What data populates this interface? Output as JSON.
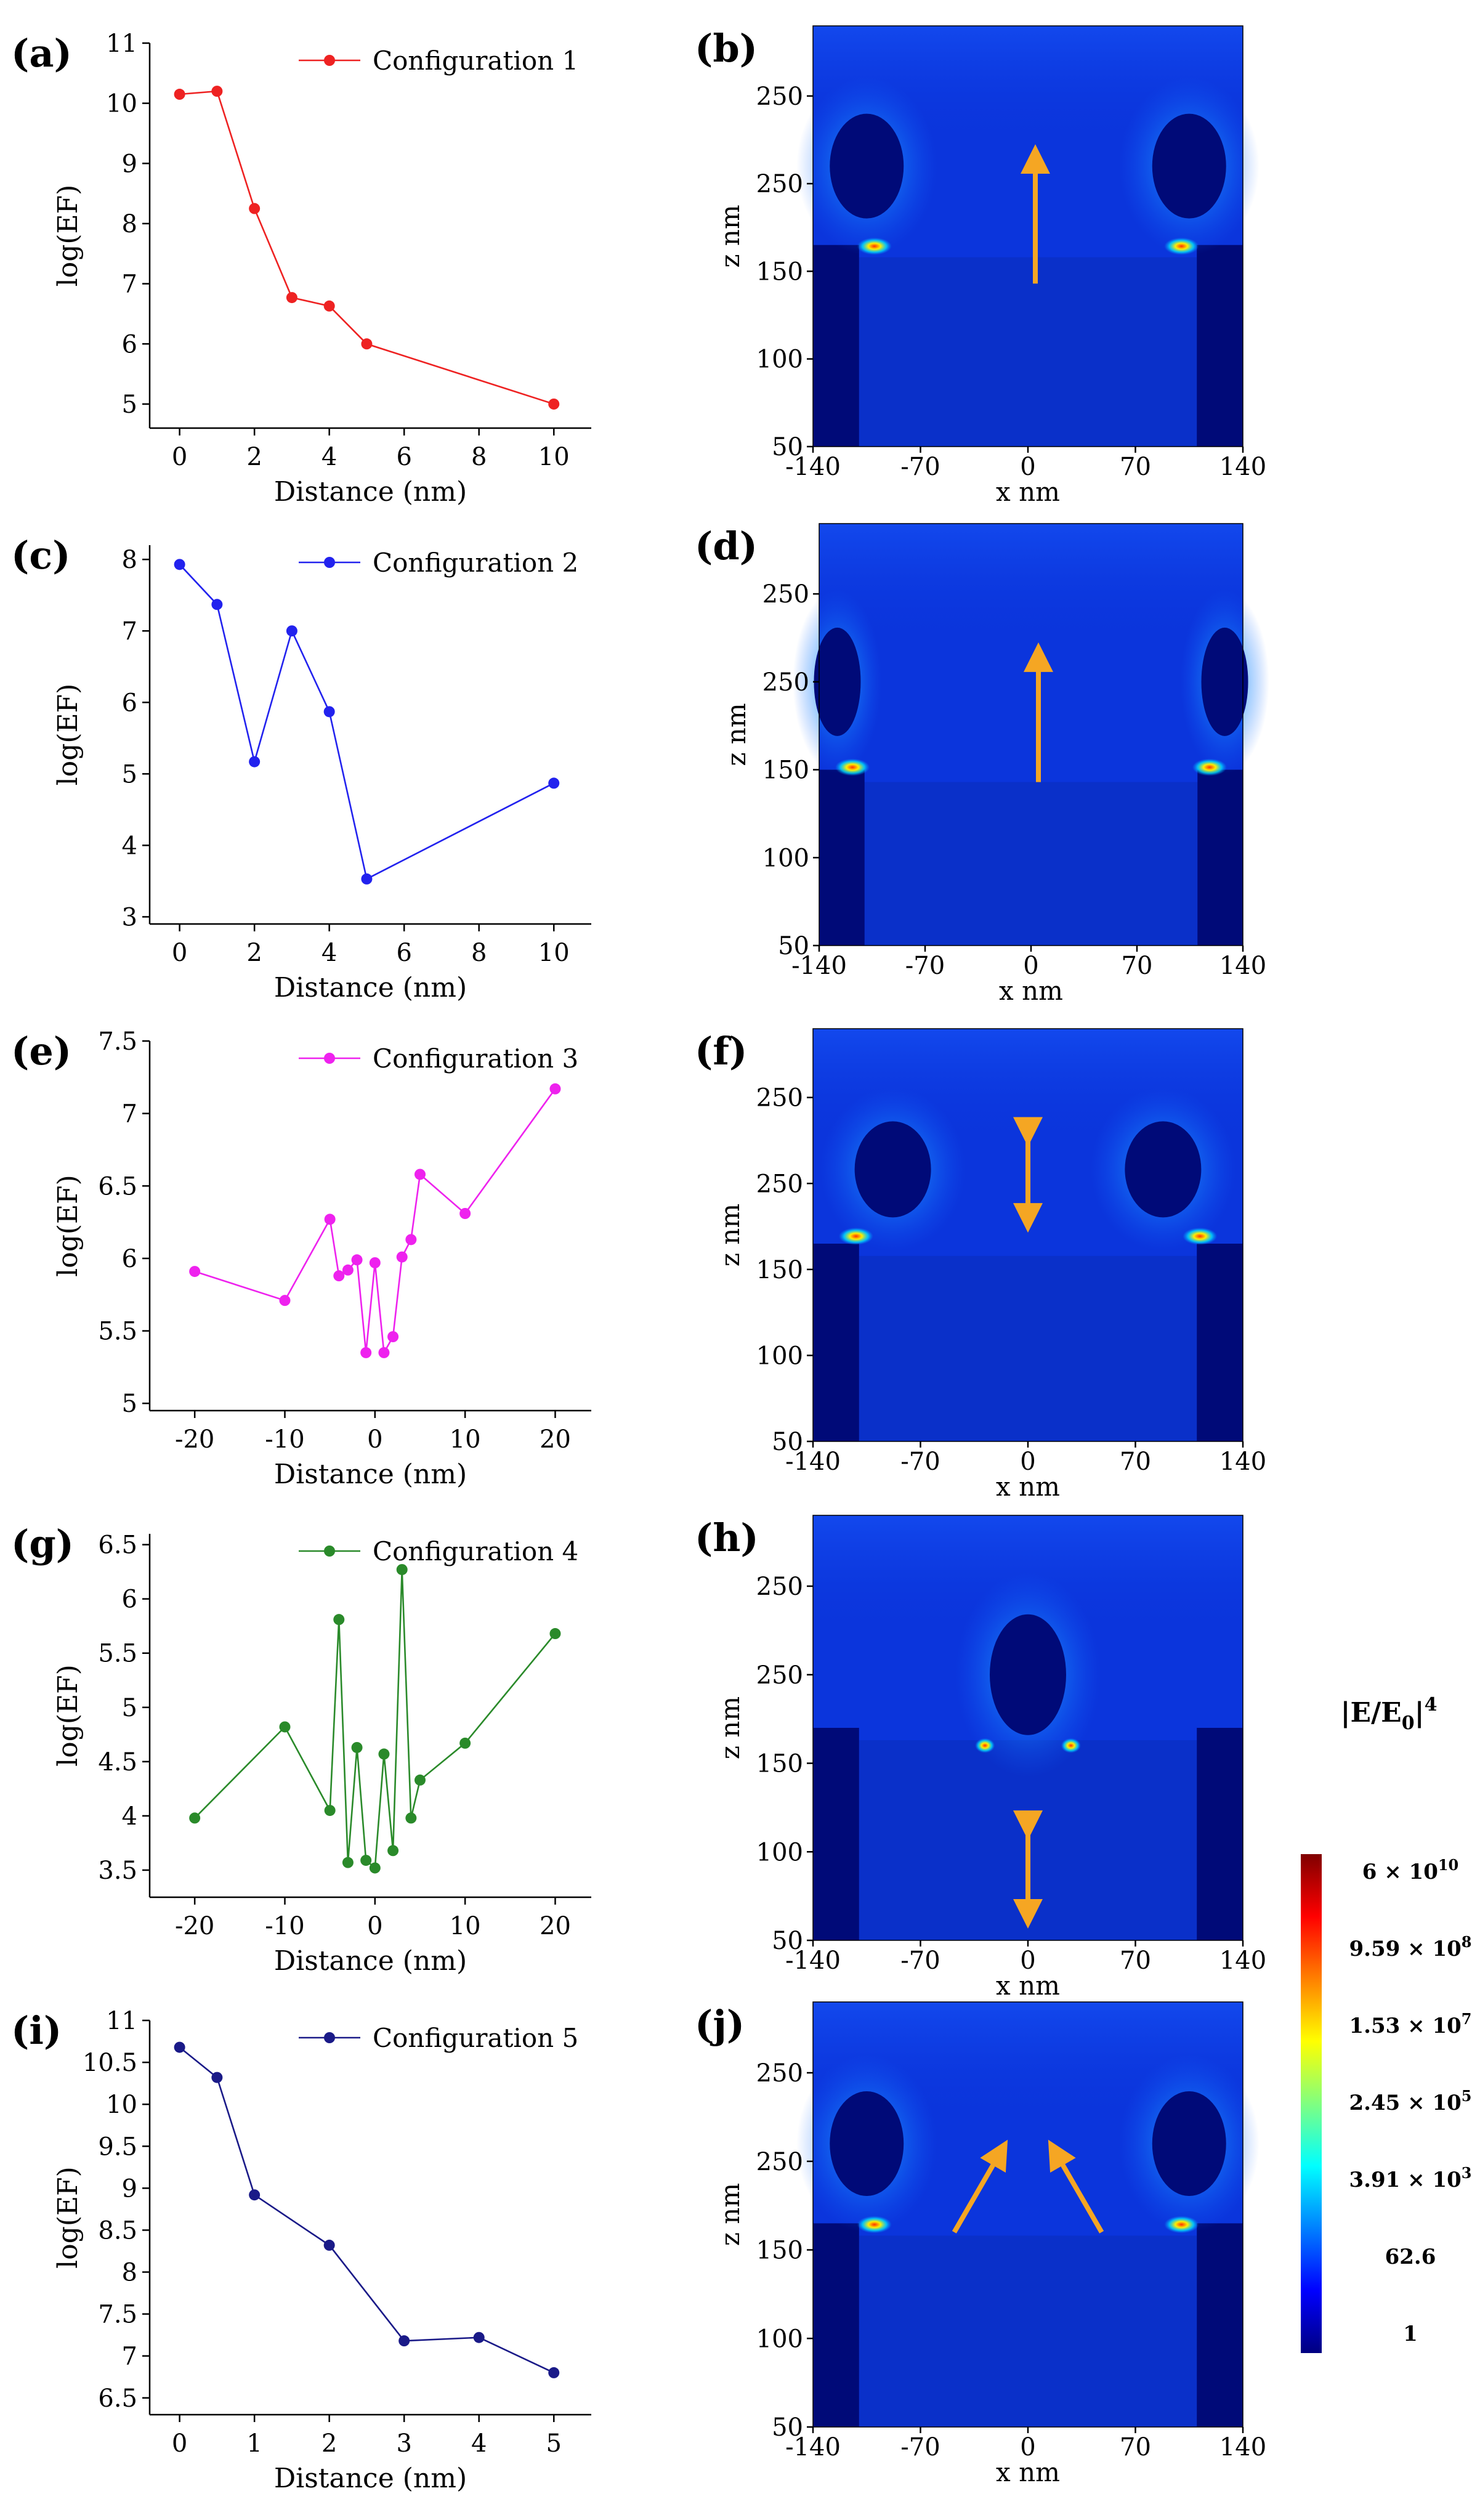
{
  "chart_data": [
    {
      "type": "line",
      "panel": "(a)",
      "xlabel": "Distance (nm)",
      "ylabel": "log(EF)",
      "xlim": [
        -0.8,
        11
      ],
      "ylim": [
        4.6,
        11
      ],
      "xticks": [
        0,
        2,
        4,
        6,
        8,
        10
      ],
      "yticks": [
        5,
        6,
        7,
        8,
        9,
        10,
        11
      ],
      "color": "#ee2222",
      "legend": "top-right",
      "series": [
        {
          "name": "Configuration 1",
          "x": [
            0,
            1,
            2,
            3,
            4,
            5,
            10
          ],
          "y": [
            10.15,
            10.2,
            8.25,
            6.77,
            6.63,
            6.0,
            5.0
          ]
        }
      ]
    },
    {
      "type": "line",
      "panel": "(c)",
      "xlabel": "Distance (nm)",
      "ylabel": "log(EF)",
      "xlim": [
        -0.8,
        11
      ],
      "ylim": [
        2.9,
        8.2
      ],
      "xticks": [
        0,
        2,
        4,
        6,
        8,
        10
      ],
      "yticks": [
        3,
        4,
        5,
        6,
        7,
        8
      ],
      "color": "#2222ee",
      "legend": "top-right",
      "series": [
        {
          "name": "Configuration 2",
          "x": [
            0,
            1,
            2,
            3,
            4,
            5,
            10
          ],
          "y": [
            7.93,
            7.37,
            5.17,
            7.0,
            5.87,
            3.53,
            4.87
          ]
        }
      ]
    },
    {
      "type": "line",
      "panel": "(e)",
      "xlabel": "Distance (nm)",
      "ylabel": "log(EF)",
      "xlim": [
        -25,
        24
      ],
      "ylim": [
        4.95,
        7.5
      ],
      "xticks": [
        -20,
        -10,
        0,
        10,
        20
      ],
      "yticks": [
        5,
        5.5,
        6,
        6.5,
        7,
        7.5
      ],
      "color": "#ee22ee",
      "legend": "top-right",
      "series": [
        {
          "name": "Configuration 3",
          "x": [
            -20,
            -10,
            -5,
            -4,
            -3,
            -2,
            -1,
            0,
            1,
            2,
            3,
            4,
            5,
            10,
            20
          ],
          "y": [
            5.91,
            5.71,
            6.27,
            5.88,
            5.92,
            5.99,
            5.35,
            5.97,
            5.35,
            5.46,
            6.01,
            6.13,
            6.58,
            6.31,
            7.17
          ]
        }
      ]
    },
    {
      "type": "line",
      "panel": "(g)",
      "xlabel": "Distance (nm)",
      "ylabel": "log(EF)",
      "xlim": [
        -25,
        24
      ],
      "ylim": [
        3.25,
        6.6
      ],
      "xticks": [
        -20,
        -10,
        0,
        10,
        20
      ],
      "yticks": [
        3.5,
        4,
        4.5,
        5,
        5.5,
        6,
        6.5
      ],
      "color": "#2a8a2a",
      "legend": "top-right",
      "series": [
        {
          "name": "Configuration 4",
          "x": [
            -20,
            -10,
            -5,
            -4,
            -3,
            -2,
            -1,
            0,
            1,
            2,
            3,
            4,
            5,
            10,
            20
          ],
          "y": [
            3.98,
            4.82,
            4.05,
            5.81,
            3.57,
            4.63,
            3.59,
            3.52,
            4.57,
            3.68,
            6.27,
            3.98,
            4.33,
            4.67,
            5.68
          ]
        }
      ]
    },
    {
      "type": "line",
      "panel": "(i)",
      "xlabel": "Distance (nm)",
      "ylabel": "log(EF)",
      "xlim": [
        -0.4,
        5.5
      ],
      "ylim": [
        6.3,
        11
      ],
      "xticks": [
        0,
        1,
        2,
        3,
        4,
        5
      ],
      "yticks": [
        6.5,
        7,
        7.5,
        8,
        8.5,
        9,
        9.5,
        10,
        10.5,
        11
      ],
      "color": "#1a1a88",
      "legend": "top-right",
      "series": [
        {
          "name": "Configuration 5",
          "x": [
            0,
            0.5,
            1,
            2,
            3,
            4,
            5
          ],
          "y": [
            10.68,
            10.32,
            8.92,
            8.32,
            7.18,
            7.22,
            6.8
          ]
        }
      ]
    },
    {
      "type": "heatmap",
      "panel": "(b)",
      "xlabel": "x nm",
      "ylabel": "z nm",
      "xlim": [
        -140,
        140
      ],
      "ylim": [
        50,
        290
      ],
      "xticks": [
        "-140",
        "-70",
        "0",
        "70",
        "140"
      ],
      "yticks": [
        "50",
        "100",
        "150",
        "250",
        "250"
      ],
      "arrow": "up",
      "particles": "left+right"
    },
    {
      "type": "heatmap",
      "panel": "(d)",
      "xlabel": "x nm",
      "ylabel": "z nm",
      "xlim": [
        -140,
        140
      ],
      "ylim": [
        50,
        290
      ],
      "xticks": [
        "-140",
        "-70",
        "0",
        "70",
        "140"
      ],
      "yticks": [
        "50",
        "100",
        "150",
        "250",
        "250"
      ],
      "arrow": "up",
      "particles": "left+right-edge"
    },
    {
      "type": "heatmap",
      "panel": "(f)",
      "xlabel": "x nm",
      "ylabel": "z nm",
      "xlim": [
        -140,
        140
      ],
      "ylim": [
        50,
        290
      ],
      "xticks": [
        "-140",
        "-70",
        "0",
        "70",
        "140"
      ],
      "yticks": [
        "50",
        "100",
        "150",
        "250",
        "250"
      ],
      "arrow": "double-vertical",
      "particles": "left+right-inner"
    },
    {
      "type": "heatmap",
      "panel": "(h)",
      "xlabel": "x nm",
      "ylabel": "z nm",
      "xlim": [
        -140,
        140
      ],
      "ylim": [
        50,
        290
      ],
      "xticks": [
        "-140",
        "-70",
        "0",
        "70",
        "140"
      ],
      "yticks": [
        "50",
        "100",
        "150",
        "250",
        "250"
      ],
      "arrow": "double-vertical-low",
      "particles": "center"
    },
    {
      "type": "heatmap",
      "panel": "(j)",
      "xlabel": "x nm",
      "ylabel": "z nm",
      "xlim": [
        -140,
        140
      ],
      "ylim": [
        50,
        290
      ],
      "xticks": [
        "-140",
        "-70",
        "0",
        "70",
        "140"
      ],
      "yticks": [
        "50",
        "100",
        "150",
        "250",
        "250"
      ],
      "arrow": "diagonal-pair",
      "particles": "left+right"
    }
  ],
  "colorbar": {
    "title_main": "|E/E",
    "title_sub": "0",
    "title_end": "|",
    "title_sup": "4",
    "ticks": [
      {
        "base": "6 × 10",
        "exp": "10"
      },
      {
        "base": "9.59 × 10",
        "exp": "8"
      },
      {
        "base": "1.53 × 10",
        "exp": "7"
      },
      {
        "base": "2.45 × 10",
        "exp": "5"
      },
      {
        "base": "3.91 × 10",
        "exp": "3"
      },
      {
        "base": "62.6",
        "exp": ""
      },
      {
        "base": "1",
        "exp": ""
      }
    ],
    "colors": [
      "#000080",
      "#0000ff",
      "#0080ff",
      "#00ffff",
      "#80ff80",
      "#ffff00",
      "#ff8000",
      "#ff0000",
      "#800000"
    ]
  },
  "colors": {
    "field_background": "#0b35dc",
    "field_dark": "#000a78",
    "arrow": "#f5a623"
  }
}
